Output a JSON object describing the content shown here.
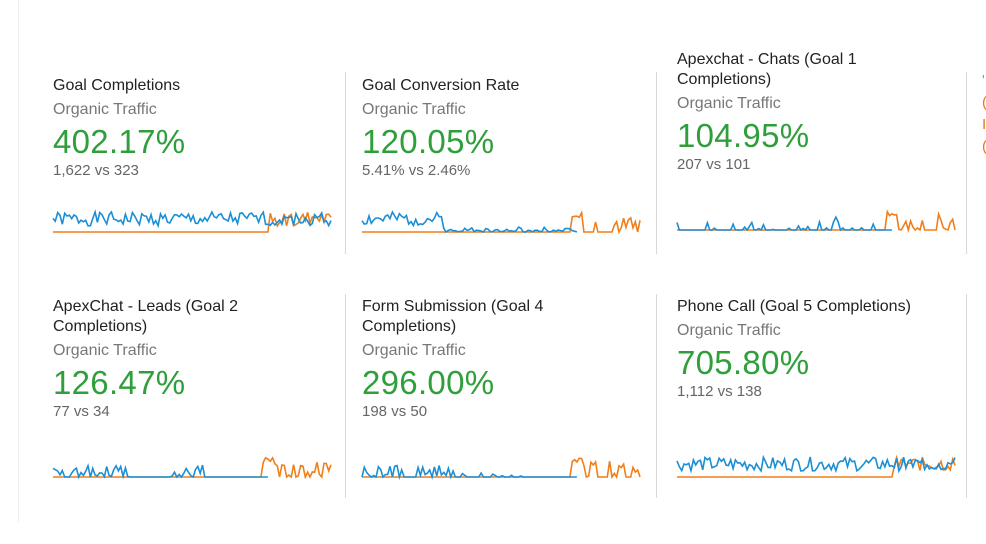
{
  "colors": {
    "accent_green": "#2e9f3a",
    "series_blue": "#1a8fd6",
    "series_orange": "#f07f1a",
    "divider": "#d8d8d8"
  },
  "cards": [
    {
      "title": "Goal Completions",
      "segment": "Organic Traffic",
      "change": "402.17%",
      "comparison": "1,622 vs 323"
    },
    {
      "title": "Goal Conversion Rate",
      "segment": "Organic Traffic",
      "change": "120.05%",
      "comparison": "5.41% vs 2.46%"
    },
    {
      "title": "Apexchat - Chats (Goal 1 Completions)",
      "segment": "Organic Traffic",
      "change": "104.95%",
      "comparison": "207 vs 101"
    },
    {
      "title": "ApexChat - Leads (Goal 2 Completions)",
      "segment": "Organic Traffic",
      "change": "126.47%",
      "comparison": "77 vs 34"
    },
    {
      "title": "Form Submission (Goal 4 Completions)",
      "segment": "Organic Traffic",
      "change": "296.00%",
      "comparison": "198 vs 50"
    },
    {
      "title": "Phone Call (Goal 5 Completions)",
      "segment": "Organic Traffic",
      "change": "705.80%",
      "comparison": "1,112 vs 138"
    }
  ]
}
